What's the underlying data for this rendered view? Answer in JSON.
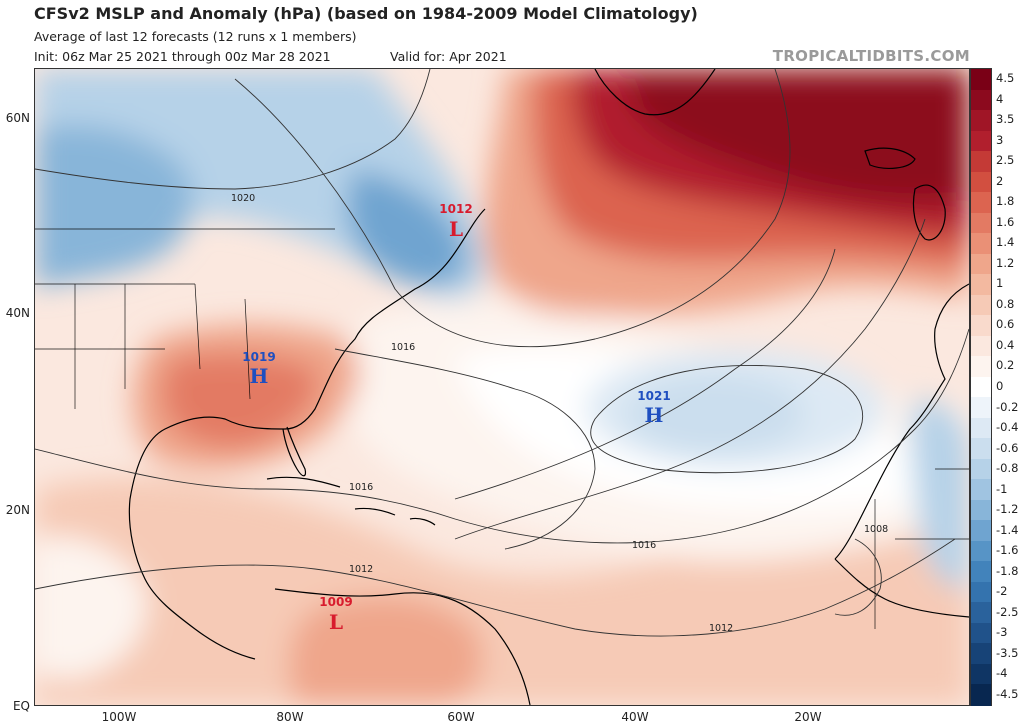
{
  "header": {
    "title": "CFSv2 MSLP and Anomaly (hPa) (based on 1984-2009 Model Climatology)",
    "subtitle": "Average of last 12 forecasts (12 runs x 1 members)",
    "init": "Init: 06z Mar 25 2021 through 00z Mar 28 2021",
    "valid": "Valid for: Apr 2021",
    "brand": "TROPICALTIDBITS.COM"
  },
  "axes": {
    "lat_labels": [
      "60N",
      "40N",
      "20N",
      "EQ"
    ],
    "lon_labels": [
      "100W",
      "80W",
      "60W",
      "40W",
      "20W"
    ]
  },
  "isobars": {
    "labels": [
      "1020",
      "1016",
      "1016",
      "1016",
      "1012",
      "1012",
      "1008"
    ]
  },
  "systems": [
    {
      "type": "L",
      "value": "1012",
      "color": "#d81b2d"
    },
    {
      "type": "H",
      "value": "1019",
      "color": "#1f4fc0"
    },
    {
      "type": "H",
      "value": "1021",
      "color": "#1f4fc0"
    },
    {
      "type": "L",
      "value": "1009",
      "color": "#d81b2d"
    }
  ],
  "colorbar": {
    "labels": [
      "4.5",
      "4",
      "3.5",
      "3",
      "2.5",
      "2",
      "1.8",
      "1.6",
      "1.4",
      "1.2",
      "1",
      "0.8",
      "0.6",
      "0.4",
      "0.2",
      "0",
      "-0.2",
      "-0.4",
      "-0.6",
      "-0.8",
      "-1",
      "-1.2",
      "-1.4",
      "-1.6",
      "-1.8",
      "-2",
      "-2.5",
      "-3",
      "-3.5",
      "-4",
      "-4.5"
    ],
    "colors": [
      "#7a0016",
      "#8c0a1e",
      "#a01526",
      "#b11f2d",
      "#c43a36",
      "#d24f40",
      "#dc6450",
      "#e37a63",
      "#ea9076",
      "#efa68b",
      "#f3b9a0",
      "#f6cab6",
      "#f9dacc",
      "#fbe8df",
      "#fdf4ef",
      "#ffffff",
      "#eef4fa",
      "#dde9f4",
      "#cbdeee",
      "#b6d2e8",
      "#a0c4e1",
      "#88b5d9",
      "#6fa4d0",
      "#5794c6",
      "#4283bb",
      "#3473ae",
      "#2a629c",
      "#20528a",
      "#174377",
      "#0f3564",
      "#082750"
    ]
  },
  "land_color": "#000000"
}
